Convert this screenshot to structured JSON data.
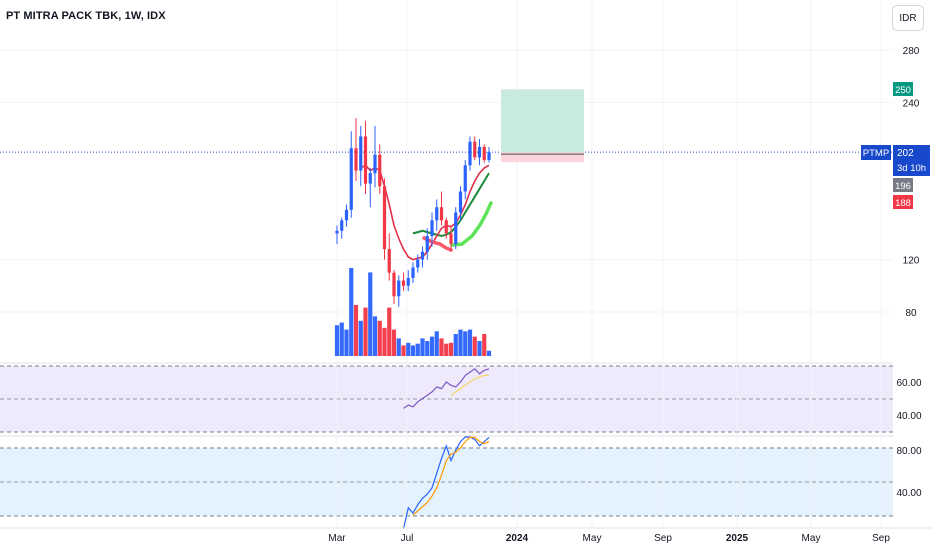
{
  "header": {
    "title": "PT MITRA PACK TBK, 1W, IDX",
    "currency": "IDR"
  },
  "colors": {
    "up": "#2962ff",
    "down": "#f23645",
    "price_line": "#1848cc",
    "target_fill": "#c8eadf",
    "stop_fill": "#fcd6dc",
    "rsi_band": "#efeafb",
    "stoch_band": "#e3f2fd"
  },
  "chart_data": [
    {
      "type": "candlestick",
      "pane": "price",
      "y_ticks": [
        "280",
        "240",
        "120",
        "80"
      ],
      "x_ticks": [
        "Mar",
        "Jul",
        "2024",
        "May",
        "Sep",
        "2025",
        "May",
        "Sep"
      ],
      "candles": [
        {
          "o": 140,
          "h": 146,
          "l": 132,
          "c": 142
        },
        {
          "o": 142,
          "h": 152,
          "l": 136,
          "c": 150
        },
        {
          "o": 150,
          "h": 162,
          "l": 145,
          "c": 158
        },
        {
          "o": 158,
          "h": 218,
          "l": 152,
          "c": 205
        },
        {
          "o": 205,
          "h": 228,
          "l": 180,
          "c": 188
        },
        {
          "o": 188,
          "h": 222,
          "l": 176,
          "c": 214
        },
        {
          "o": 214,
          "h": 226,
          "l": 170,
          "c": 178
        },
        {
          "o": 178,
          "h": 190,
          "l": 160,
          "c": 186
        },
        {
          "o": 186,
          "h": 222,
          "l": 175,
          "c": 200
        },
        {
          "o": 200,
          "h": 208,
          "l": 170,
          "c": 176
        },
        {
          "o": 176,
          "h": 182,
          "l": 120,
          "c": 128
        },
        {
          "o": 128,
          "h": 140,
          "l": 104,
          "c": 110
        },
        {
          "o": 110,
          "h": 112,
          "l": 86,
          "c": 92
        },
        {
          "o": 92,
          "h": 108,
          "l": 84,
          "c": 104
        },
        {
          "o": 104,
          "h": 110,
          "l": 96,
          "c": 100
        },
        {
          "o": 100,
          "h": 112,
          "l": 96,
          "c": 106
        },
        {
          "o": 106,
          "h": 118,
          "l": 102,
          "c": 114
        },
        {
          "o": 114,
          "h": 124,
          "l": 110,
          "c": 120
        },
        {
          "o": 120,
          "h": 130,
          "l": 114,
          "c": 126
        },
        {
          "o": 126,
          "h": 144,
          "l": 120,
          "c": 138
        },
        {
          "o": 138,
          "h": 156,
          "l": 130,
          "c": 150
        },
        {
          "o": 150,
          "h": 166,
          "l": 142,
          "c": 160
        },
        {
          "o": 160,
          "h": 172,
          "l": 146,
          "c": 150
        },
        {
          "o": 150,
          "h": 152,
          "l": 136,
          "c": 140
        },
        {
          "o": 140,
          "h": 146,
          "l": 126,
          "c": 132
        },
        {
          "o": 132,
          "h": 160,
          "l": 128,
          "c": 156
        },
        {
          "o": 156,
          "h": 176,
          "l": 150,
          "c": 172
        },
        {
          "o": 172,
          "h": 196,
          "l": 166,
          "c": 192
        },
        {
          "o": 192,
          "h": 214,
          "l": 188,
          "c": 210
        },
        {
          "o": 210,
          "h": 214,
          "l": 196,
          "c": 198
        },
        {
          "o": 198,
          "h": 212,
          "l": 192,
          "c": 206
        },
        {
          "o": 206,
          "h": 208,
          "l": 194,
          "c": 196
        },
        {
          "o": 196,
          "h": 206,
          "l": 194,
          "c": 202
        }
      ],
      "volume": [
        0.35,
        0.38,
        0.3,
        1.0,
        0.58,
        0.4,
        0.55,
        0.95,
        0.45,
        0.4,
        0.32,
        0.55,
        0.3,
        0.2,
        0.12,
        0.15,
        0.12,
        0.14,
        0.2,
        0.17,
        0.22,
        0.28,
        0.2,
        0.14,
        0.15,
        0.25,
        0.3,
        0.28,
        0.3,
        0.22,
        0.17,
        0.25,
        0.06
      ],
      "ema_short": [
        null,
        null,
        null,
        null,
        null,
        190,
        192,
        188,
        190,
        188,
        176,
        162,
        146,
        136,
        128,
        122,
        120,
        121,
        122,
        126,
        132,
        138,
        144,
        146,
        145,
        148,
        154,
        162,
        172,
        180,
        186,
        190,
        192
      ],
      "ema_long_green": [
        null,
        null,
        null,
        null,
        null,
        null,
        null,
        null,
        null,
        null,
        null,
        null,
        null,
        null,
        null,
        null,
        140,
        141,
        142,
        141,
        140,
        139,
        138,
        139,
        141,
        145,
        150,
        156,
        162,
        168,
        174,
        180,
        186
      ],
      "position": {
        "target": 250,
        "entry": 202,
        "stop": 196
      },
      "labels": {
        "target": "250",
        "symbol": "PTMP",
        "last": "202",
        "countdown": "3d 10h",
        "level_grey": "196",
        "level_red": "188"
      }
    },
    {
      "type": "line",
      "pane": "rsi",
      "y_ticks": [
        "60.00",
        "40.00"
      ],
      "series": [
        {
          "role": "rsi",
          "values": [
            null,
            null,
            null,
            null,
            null,
            null,
            null,
            null,
            null,
            null,
            null,
            null,
            null,
            null,
            44,
            46,
            45,
            48,
            50,
            52,
            54,
            57,
            56,
            60,
            58,
            57,
            60,
            64,
            66,
            68,
            65,
            67,
            68
          ]
        },
        {
          "role": "signal",
          "values": [
            null,
            null,
            null,
            null,
            null,
            null,
            null,
            null,
            null,
            null,
            null,
            null,
            null,
            null,
            null,
            null,
            null,
            null,
            null,
            null,
            null,
            null,
            null,
            null,
            52,
            54,
            56,
            58,
            60,
            62,
            63,
            64,
            64
          ]
        }
      ]
    },
    {
      "type": "line",
      "pane": "stoch",
      "y_ticks": [
        "80.00",
        "40.00"
      ],
      "series": [
        {
          "role": "k",
          "values": [
            null,
            null,
            null,
            null,
            null,
            null,
            null,
            null,
            null,
            null,
            null,
            null,
            null,
            null,
            5,
            25,
            20,
            28,
            34,
            38,
            44,
            58,
            72,
            84,
            70,
            80,
            88,
            95,
            95,
            90,
            84,
            88,
            92
          ]
        },
        {
          "role": "d",
          "values": [
            null,
            null,
            null,
            null,
            null,
            null,
            null,
            null,
            null,
            null,
            null,
            null,
            null,
            null,
            null,
            null,
            18,
            22,
            26,
            30,
            36,
            44,
            56,
            70,
            76,
            78,
            82,
            88,
            92,
            92,
            88,
            86,
            88
          ]
        }
      ]
    }
  ]
}
